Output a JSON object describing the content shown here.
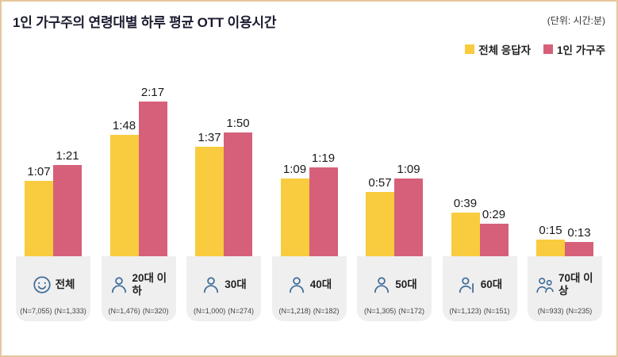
{
  "chart_data": {
    "type": "bar",
    "title": "1인 가구주의 연령대별 하루 평균 OTT 이용시간",
    "unit": "(단위: 시간:분)",
    "categories": [
      "전체",
      "20대 이하",
      "30대",
      "40대",
      "50대",
      "60대",
      "70대 이상"
    ],
    "series": [
      {
        "name": "전체 응답자",
        "color": "#F9CB3E",
        "labels": [
          "1:07",
          "1:48",
          "1:37",
          "1:09",
          "0:57",
          "0:39",
          "0:15"
        ],
        "minutes": [
          67,
          108,
          97,
          69,
          57,
          39,
          15
        ]
      },
      {
        "name": "1인 가구주",
        "color": "#D66079",
        "labels": [
          "1:21",
          "2:17",
          "1:50",
          "1:19",
          "1:09",
          "0:29",
          "0:13"
        ],
        "minutes": [
          81,
          137,
          110,
          79,
          69,
          29,
          13
        ]
      }
    ],
    "counts": [
      [
        "(N=7,055)",
        "(N=1,333)"
      ],
      [
        "(N=1,476)",
        "(N=320)"
      ],
      [
        "(N=1,000)",
        "(N=274)"
      ],
      [
        "(N=1,218)",
        "(N=182)"
      ],
      [
        "(N=1,305)",
        "(N=172)"
      ],
      [
        "(N=1,123)",
        "(N=151)"
      ],
      [
        "(N=933)",
        "(N=235)"
      ]
    ],
    "icons": [
      "face",
      "person",
      "person",
      "person",
      "person",
      "person-cane",
      "elder-couple"
    ],
    "icon_color": "#3D6B99",
    "ylim_minutes": [
      0,
      140
    ],
    "legend_position": "top-right",
    "grid": false
  }
}
